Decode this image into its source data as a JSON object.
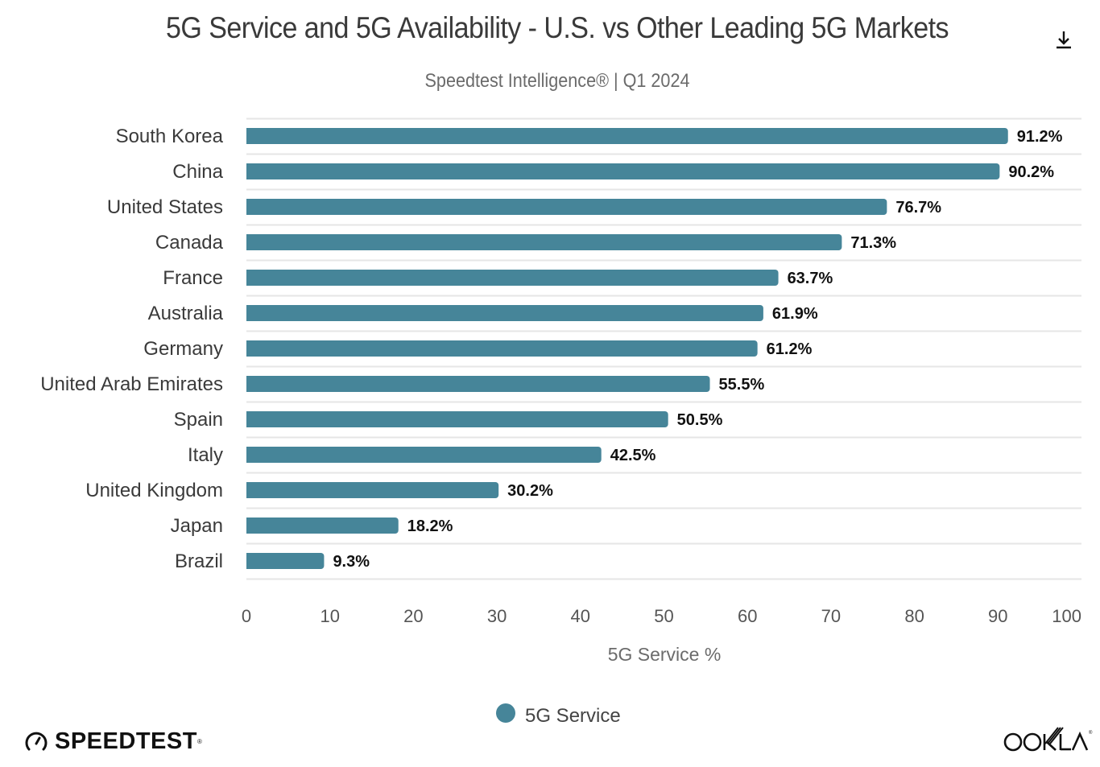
{
  "header": {
    "title": "5G Service and 5G Availability - U.S. vs Other Leading 5G Markets",
    "subtitle": "Speedtest Intelligence® | Q1 2024",
    "download_icon": "download-icon"
  },
  "colors": {
    "bar": "#468599",
    "grid": "#e6e6e6"
  },
  "chart_data": {
    "type": "bar",
    "orientation": "horizontal",
    "title": "5G Service and 5G Availability - U.S. vs Other Leading 5G Markets",
    "subtitle": "Speedtest Intelligence® | Q1 2024",
    "categories": [
      "South Korea",
      "China",
      "United States",
      "Canada",
      "France",
      "Australia",
      "Germany",
      "United Arab Emirates",
      "Spain",
      "Italy",
      "United Kingdom",
      "Japan",
      "Brazil"
    ],
    "series": [
      {
        "name": "5G Service",
        "values": [
          91.2,
          90.2,
          76.7,
          71.3,
          63.7,
          61.9,
          61.2,
          55.5,
          50.5,
          42.5,
          30.2,
          18.2,
          9.3
        ],
        "labels": [
          "91.2%",
          "90.2%",
          "76.7%",
          "71.3%",
          "63.7%",
          "61.9%",
          "61.2%",
          "55.5%",
          "50.5%",
          "42.5%",
          "30.2%",
          "18.2%",
          "9.3%"
        ]
      }
    ],
    "xlabel": "5G Service %",
    "ylabel": "",
    "xlim": [
      0,
      100
    ],
    "xticks": [
      "0",
      "10",
      "20",
      "30",
      "40",
      "50",
      "60",
      "70",
      "80",
      "90",
      "100"
    ],
    "grid": true,
    "legend": {
      "entries": [
        "5G Service"
      ],
      "placement": "bottom-center"
    }
  },
  "footer": {
    "left_logo": "SPEEDTEST",
    "right_logo": "OOKLA"
  }
}
